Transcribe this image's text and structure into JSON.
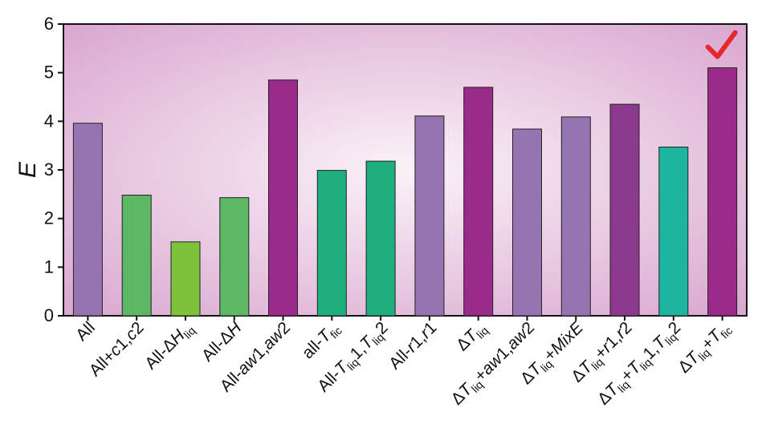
{
  "chart_data": {
    "type": "bar",
    "ylabel": "E",
    "xlabel": "",
    "ylim": [
      0,
      6
    ],
    "yticks": [
      "0",
      "1",
      "2",
      "3",
      "4",
      "5",
      "6"
    ],
    "grid": false,
    "categories": [
      {
        "label": [
          {
            "t": "All"
          }
        ]
      },
      {
        "label": [
          {
            "t": "All+"
          },
          {
            "t": "c",
            "i": true
          },
          {
            "t": "1,"
          },
          {
            "t": "c",
            "i": true
          },
          {
            "t": "2"
          }
        ]
      },
      {
        "label": [
          {
            "t": "All-"
          },
          {
            "t": "Δ"
          },
          {
            "t": "H",
            "i": true
          },
          {
            "t": "liq",
            "sub": true
          }
        ]
      },
      {
        "label": [
          {
            "t": "All-"
          },
          {
            "t": "Δ"
          },
          {
            "t": "H",
            "i": true
          }
        ]
      },
      {
        "label": [
          {
            "t": "All-"
          },
          {
            "t": "aw",
            "i": true
          },
          {
            "t": "1,"
          },
          {
            "t": "aw",
            "i": true
          },
          {
            "t": "2"
          }
        ]
      },
      {
        "label": [
          {
            "t": "all-"
          },
          {
            "t": "T",
            "i": true
          },
          {
            "t": "fic",
            "sub": true
          }
        ]
      },
      {
        "label": [
          {
            "t": "All-"
          },
          {
            "t": "T",
            "i": true
          },
          {
            "t": "liq",
            "sub": true
          },
          {
            "t": "1,"
          },
          {
            "t": "T",
            "i": true
          },
          {
            "t": "liq",
            "sub": true
          },
          {
            "t": "2"
          }
        ]
      },
      {
        "label": [
          {
            "t": "All-"
          },
          {
            "t": "r",
            "i": true
          },
          {
            "t": "1,"
          },
          {
            "t": "r",
            "i": true
          },
          {
            "t": "1"
          }
        ]
      },
      {
        "label": [
          {
            "t": "Δ"
          },
          {
            "t": "T",
            "i": true
          },
          {
            "t": "liq",
            "sub": true
          }
        ]
      },
      {
        "label": [
          {
            "t": "Δ"
          },
          {
            "t": "T",
            "i": true
          },
          {
            "t": "liq",
            "sub": true
          },
          {
            "t": "+"
          },
          {
            "t": "aw",
            "i": true
          },
          {
            "t": "1,"
          },
          {
            "t": "aw",
            "i": true
          },
          {
            "t": "2"
          }
        ]
      },
      {
        "label": [
          {
            "t": "Δ"
          },
          {
            "t": "T",
            "i": true
          },
          {
            "t": "liq",
            "sub": true
          },
          {
            "t": "+"
          },
          {
            "t": "MixE",
            "i": true
          }
        ]
      },
      {
        "label": [
          {
            "t": "Δ"
          },
          {
            "t": "T",
            "i": true
          },
          {
            "t": "liq",
            "sub": true
          },
          {
            "t": "+"
          },
          {
            "t": "r",
            "i": true
          },
          {
            "t": "1,"
          },
          {
            "t": "r",
            "i": true
          },
          {
            "t": "2"
          }
        ]
      },
      {
        "label": [
          {
            "t": "Δ"
          },
          {
            "t": "T",
            "i": true
          },
          {
            "t": "liq",
            "sub": true
          },
          {
            "t": "+"
          },
          {
            "t": "T",
            "i": true
          },
          {
            "t": "liq",
            "sub": true
          },
          {
            "t": "1,"
          },
          {
            "t": "T",
            "i": true
          },
          {
            "t": "liq",
            "sub": true
          },
          {
            "t": "2"
          }
        ]
      },
      {
        "label": [
          {
            "t": "Δ"
          },
          {
            "t": "T",
            "i": true
          },
          {
            "t": "liq",
            "sub": true
          },
          {
            "t": "+"
          },
          {
            "t": "T",
            "i": true
          },
          {
            "t": "fic",
            "sub": true
          }
        ]
      }
    ],
    "values": [
      3.96,
      2.48,
      1.52,
      2.43,
      4.85,
      2.99,
      3.18,
      4.11,
      4.7,
      3.84,
      4.09,
      4.35,
      3.47,
      5.1
    ],
    "bar_colors": [
      "#9674B2",
      "#5DB866",
      "#7DC23A",
      "#5DB866",
      "#9A2B8A",
      "#1FAE7E",
      "#1FAE7E",
      "#9674B2",
      "#9A2B8A",
      "#9674B2",
      "#9674B2",
      "#8D3A8E",
      "#1DB5A0",
      "#9A2B8A"
    ],
    "highlight": {
      "category_index": 13,
      "marker": "check-mark",
      "color": "#E8262E"
    },
    "background": {
      "center": "#FBF2F8",
      "edge": "#D9A7CF"
    }
  }
}
